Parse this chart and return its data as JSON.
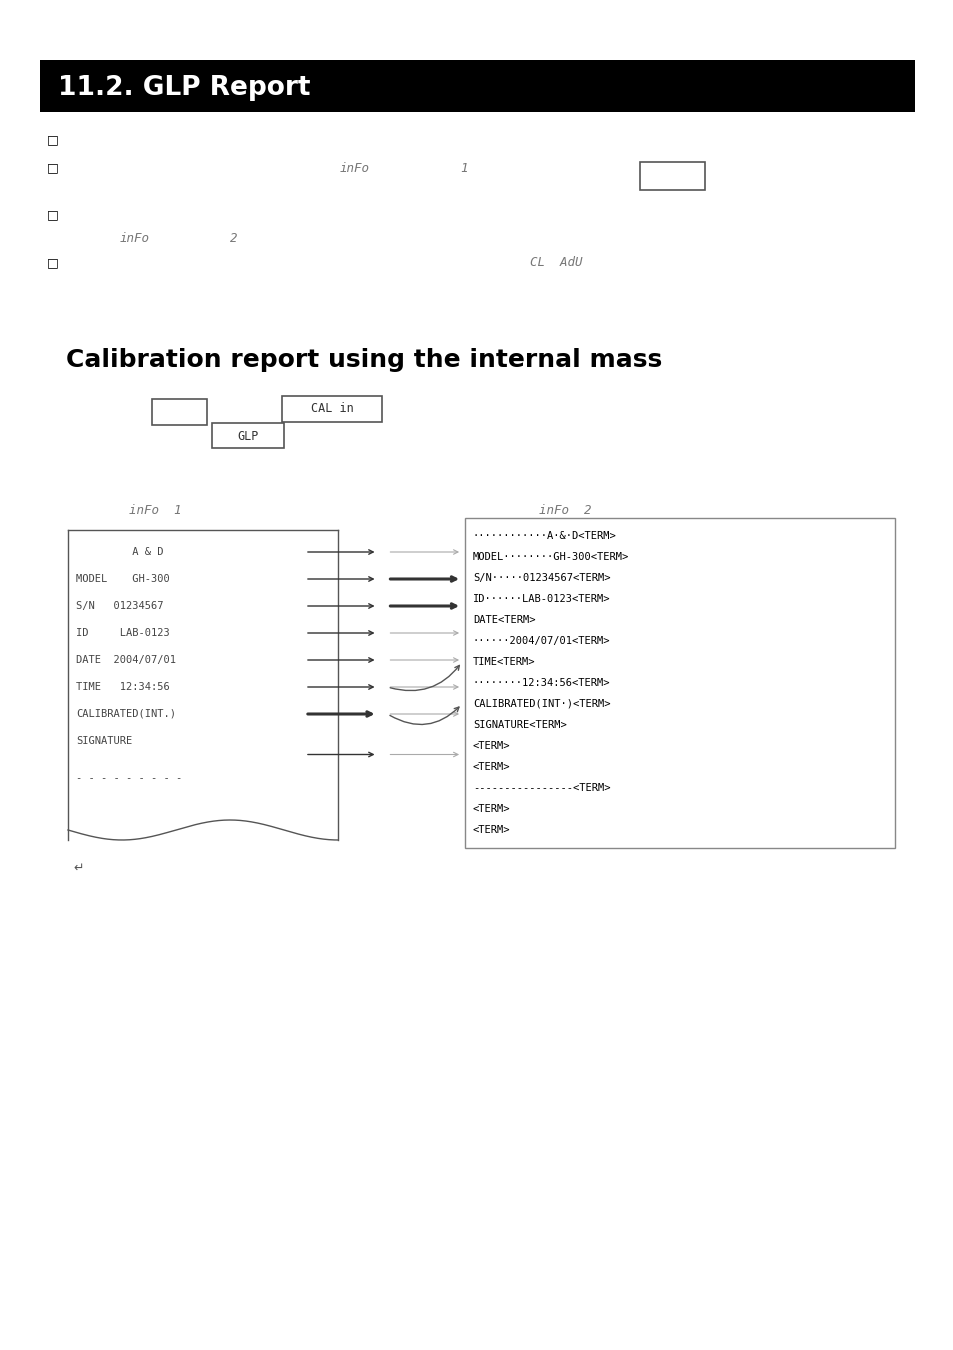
{
  "title_bar_text": "11.2. GLP Report",
  "title_bar_bg": "#000000",
  "title_bar_fg": "#ffffff",
  "section_title": "Calibration report using the internal mass",
  "bullet_char": "□",
  "display_box_cal_in_text": "CAL in",
  "display_box_glp_text": "GLP",
  "left_panel_lines": [
    "         A & D",
    "MODEL    GH-300",
    "S/N   01234567",
    "ID     LAB-0123",
    "DATE  2004/07/01",
    "TIME   12:34:56",
    "CALIBRATED(INT.)",
    "SIGNATURE"
  ],
  "right_panel_lines": [
    "............A.&.D<TERM>",
    "MODEL........GH-300<TERM>",
    "S/N.....01234567<TERM>",
    "ID......LAB-0123<TERM>",
    "DATE<TERM>",
    "......2004/07/01<TERM>",
    "TIME<TERM>",
    "........12:34:56<TERM>",
    "CALIBRATED(INT.)<TERM>",
    "SIGNATURE<TERM>",
    "<TERM>",
    "<TERM>",
    "----------------<TERM>",
    "<TERM>",
    "<TERM>"
  ],
  "dashes_line": "- - - - - - - - -",
  "bg_color": "#ffffff",
  "font_mono": "monospace",
  "font_sans": "sans-serif"
}
